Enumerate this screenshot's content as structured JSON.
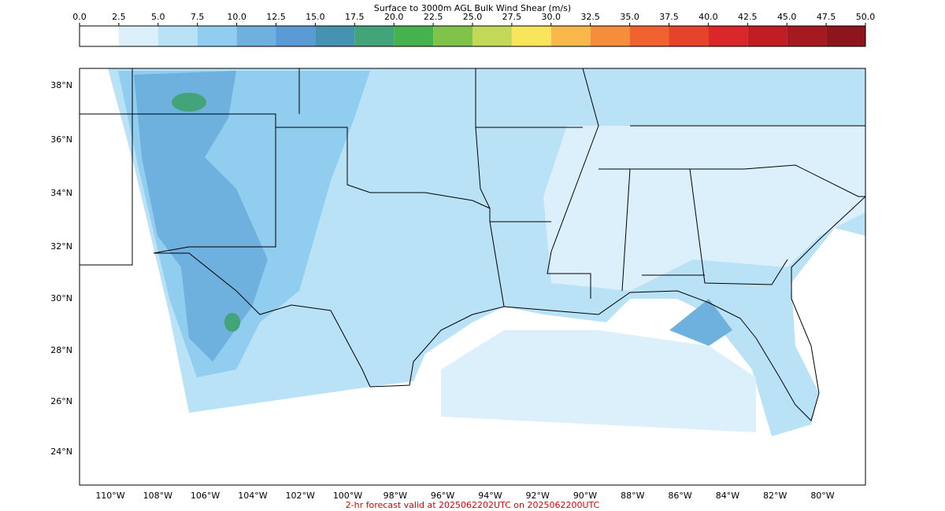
{
  "colorbar": {
    "title": "Surface to 3000m AGL Bulk Wind Shear (m/s)",
    "levels": [
      {
        "value": 0,
        "label": "0.0"
      },
      2.5,
      {
        "value": 5,
        "label": "5.0"
      },
      7.5,
      {
        "value": 10,
        "label": "10.0"
      },
      12.5,
      {
        "value": 15,
        "label": "15.0"
      },
      17.5,
      {
        "value": 20,
        "label": "20.0"
      },
      22.5,
      {
        "value": 25,
        "label": "25.0"
      },
      27.5,
      {
        "value": 30,
        "label": "30.0"
      },
      32.5,
      {
        "value": 35,
        "label": "35.0"
      },
      37.5,
      {
        "value": 40,
        "label": "40.0"
      },
      42.5,
      {
        "value": 45,
        "label": "45.0"
      },
      47.5,
      {
        "value": 50,
        "label": "50.0"
      }
    ],
    "colors": [
      "#ffffff",
      "#dcf0fb",
      "#b9e2f6",
      "#91cdef",
      "#6eb0de",
      "#5b9bd5",
      "#4593b0",
      "#43a47a",
      "#45b34d",
      "#80c24a",
      "#c2d858",
      "#f9e55a",
      "#f8b84a",
      "#f68d3a",
      "#f06230",
      "#e5442b",
      "#d9272a",
      "#c01d25",
      "#a51a21",
      "#8d151c"
    ]
  },
  "map": {
    "lat_labels": [
      "38°N",
      "36°N",
      "34°N",
      "32°N",
      "30°N",
      "28°N",
      "26°N",
      "24°N"
    ],
    "lon_labels": [
      "110°W",
      "108°W",
      "106°W",
      "104°W",
      "102°W",
      "100°W",
      "98°W",
      "96°W",
      "94°W",
      "92°W",
      "90°W",
      "88°W",
      "86°W",
      "84°W",
      "82°W",
      "80°W"
    ],
    "footer": "2-hr forecast valid at 2025062202UTC on 2025062200UTC"
  }
}
